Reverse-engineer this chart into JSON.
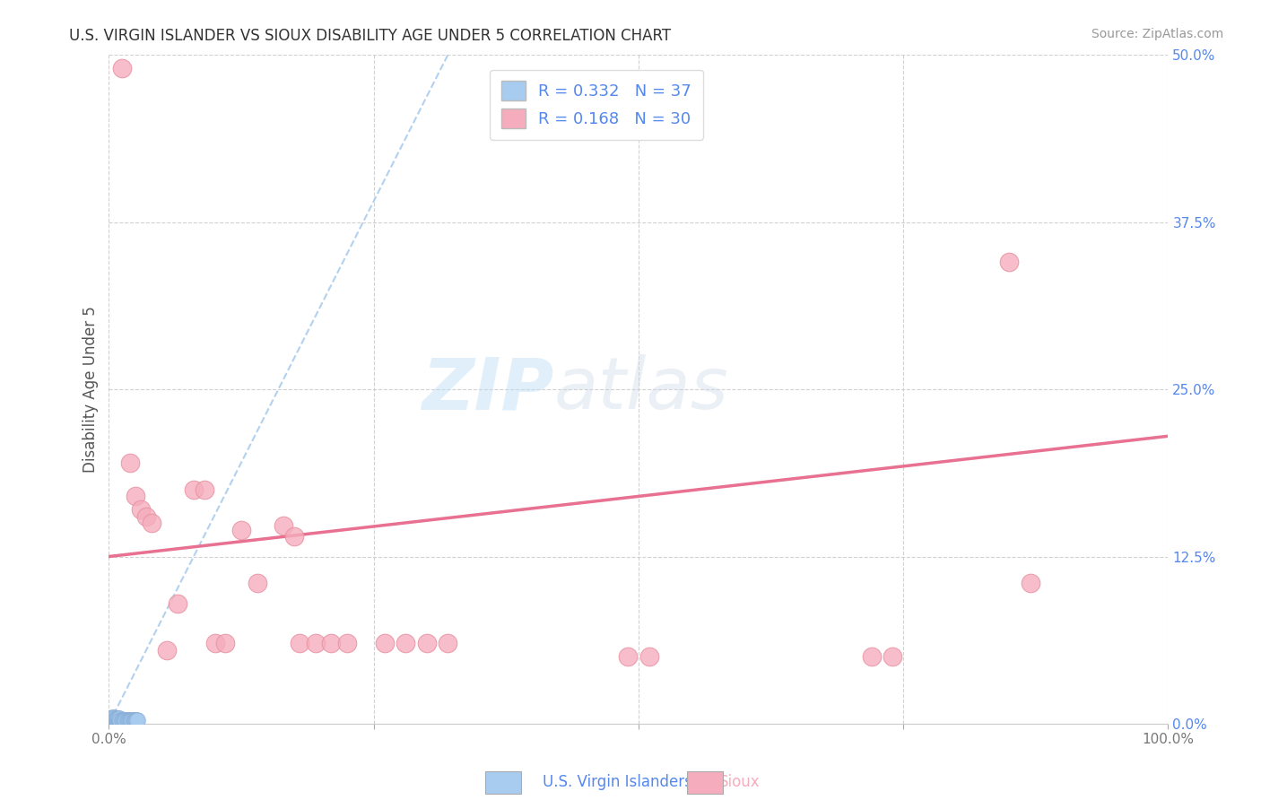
{
  "title": "U.S. VIRGIN ISLANDER VS SIOUX DISABILITY AGE UNDER 5 CORRELATION CHART",
  "source": "Source: ZipAtlas.com",
  "ylabel": "Disability Age Under 5",
  "xlim": [
    0.0,
    1.0
  ],
  "ylim": [
    0.0,
    0.5
  ],
  "xticks": [
    0.0,
    0.25,
    0.5,
    0.75,
    1.0
  ],
  "xticklabels_show": [
    0.0,
    1.0
  ],
  "xticklabels": [
    "0.0%",
    "",
    "",
    "",
    "100.0%"
  ],
  "yticks": [
    0.0,
    0.125,
    0.25,
    0.375,
    0.5
  ],
  "yticklabels": [
    "0.0%",
    "12.5%",
    "25.0%",
    "37.5%",
    "50.0%"
  ],
  "blue_R": "0.332",
  "blue_N": "37",
  "pink_R": "0.168",
  "pink_N": "30",
  "blue_color": "#A8CCEF",
  "pink_color": "#F5ADBD",
  "blue_edge_color": "#8AAFD8",
  "pink_edge_color": "#E890A0",
  "blue_line_color": "#AACCEE",
  "pink_line_color": "#E87090",
  "watermark_zip": "ZIP",
  "watermark_atlas": "atlas",
  "blue_scatter_x": [
    0.001,
    0.002,
    0.002,
    0.003,
    0.003,
    0.004,
    0.004,
    0.005,
    0.005,
    0.005,
    0.006,
    0.006,
    0.007,
    0.007,
    0.008,
    0.008,
    0.009,
    0.009,
    0.01,
    0.01,
    0.011,
    0.012,
    0.013,
    0.014,
    0.015,
    0.016,
    0.017,
    0.018,
    0.019,
    0.02,
    0.021,
    0.022,
    0.023,
    0.024,
    0.025,
    0.026,
    0.027
  ],
  "blue_scatter_y": [
    0.003,
    0.003,
    0.004,
    0.003,
    0.005,
    0.003,
    0.004,
    0.003,
    0.004,
    0.005,
    0.003,
    0.004,
    0.003,
    0.004,
    0.003,
    0.004,
    0.003,
    0.004,
    0.003,
    0.004,
    0.003,
    0.003,
    0.003,
    0.003,
    0.003,
    0.003,
    0.003,
    0.003,
    0.003,
    0.003,
    0.003,
    0.003,
    0.003,
    0.003,
    0.003,
    0.003,
    0.003
  ],
  "pink_scatter_x": [
    0.012,
    0.02,
    0.025,
    0.03,
    0.035,
    0.04,
    0.055,
    0.065,
    0.08,
    0.09,
    0.1,
    0.11,
    0.125,
    0.14,
    0.165,
    0.175,
    0.18,
    0.195,
    0.21,
    0.225,
    0.26,
    0.28,
    0.3,
    0.32,
    0.49,
    0.51,
    0.72,
    0.74,
    0.85,
    0.87
  ],
  "pink_scatter_y": [
    0.49,
    0.195,
    0.17,
    0.16,
    0.155,
    0.15,
    0.055,
    0.09,
    0.175,
    0.175,
    0.06,
    0.06,
    0.145,
    0.105,
    0.148,
    0.14,
    0.06,
    0.06,
    0.06,
    0.06,
    0.06,
    0.06,
    0.06,
    0.06,
    0.05,
    0.05,
    0.05,
    0.05,
    0.345,
    0.105
  ],
  "blue_trend_x0": 0.0,
  "blue_trend_y0": 0.0,
  "blue_trend_x1": 0.32,
  "blue_trend_y1": 0.5,
  "pink_trend_x0": 0.0,
  "pink_trend_y0": 0.125,
  "pink_trend_x1": 1.0,
  "pink_trend_y1": 0.215
}
